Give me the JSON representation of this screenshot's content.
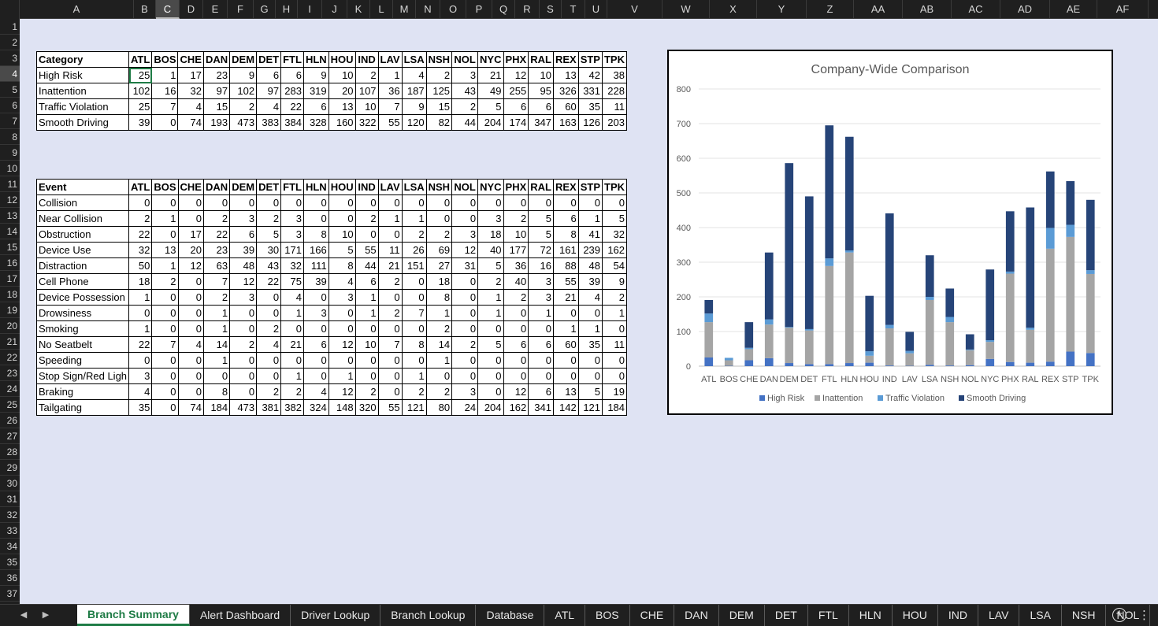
{
  "spreadsheet": {
    "columns": [
      "A",
      "B",
      "C",
      "D",
      "E",
      "F",
      "G",
      "H",
      "I",
      "J",
      "K",
      "L",
      "M",
      "N",
      "O",
      "P",
      "Q",
      "R",
      "S",
      "T",
      "U",
      "V",
      "W",
      "X",
      "Y",
      "Z",
      "AA",
      "AB",
      "AC",
      "AD",
      "AE",
      "AF",
      "AG"
    ],
    "selected_column": "C",
    "rows": [
      "1",
      "2",
      "3",
      "4",
      "5",
      "6",
      "7",
      "8",
      "9",
      "10",
      "11",
      "12",
      "13",
      "14",
      "15",
      "16",
      "17",
      "18",
      "19",
      "20",
      "21",
      "22",
      "23",
      "24",
      "25",
      "26",
      "27",
      "28",
      "29",
      "30",
      "31",
      "32",
      "33",
      "34",
      "35",
      "36",
      "37"
    ],
    "selected_row": "4"
  },
  "category_table": {
    "header": [
      "Category",
      "ATL",
      "BOS",
      "CHE",
      "DAN",
      "DEM",
      "DET",
      "FTL",
      "HLN",
      "HOU",
      "IND",
      "LAV",
      "LSA",
      "NSH",
      "NOL",
      "NYC",
      "PHX",
      "RAL",
      "REX",
      "STP",
      "TPK"
    ],
    "rows": [
      {
        "label": "High Risk",
        "values": [
          25,
          1,
          17,
          23,
          9,
          6,
          6,
          9,
          10,
          2,
          1,
          4,
          2,
          3,
          21,
          12,
          10,
          13,
          42,
          38
        ]
      },
      {
        "label": "Inattention",
        "values": [
          102,
          16,
          32,
          97,
          102,
          97,
          283,
          319,
          20,
          107,
          36,
          187,
          125,
          43,
          49,
          255,
          95,
          326,
          331,
          228
        ]
      },
      {
        "label": "Traffic Violation",
        "values": [
          25,
          7,
          4,
          15,
          2,
          4,
          22,
          6,
          13,
          10,
          7,
          9,
          15,
          2,
          5,
          6,
          6,
          60,
          35,
          11
        ]
      },
      {
        "label": "Smooth Driving",
        "values": [
          39,
          0,
          74,
          193,
          473,
          383,
          384,
          328,
          160,
          322,
          55,
          120,
          82,
          44,
          204,
          174,
          347,
          163,
          126,
          203
        ]
      }
    ]
  },
  "event_table": {
    "header": [
      "Event",
      "ATL",
      "BOS",
      "CHE",
      "DAN",
      "DEM",
      "DET",
      "FTL",
      "HLN",
      "HOU",
      "IND",
      "LAV",
      "LSA",
      "NSH",
      "NOL",
      "NYC",
      "PHX",
      "RAL",
      "REX",
      "STP",
      "TPK"
    ],
    "rows": [
      {
        "label": "Collision",
        "values": [
          0,
          0,
          0,
          0,
          0,
          0,
          0,
          0,
          0,
          0,
          0,
          0,
          0,
          0,
          0,
          0,
          0,
          0,
          0,
          0
        ]
      },
      {
        "label": "Near Collision",
        "values": [
          2,
          1,
          0,
          2,
          3,
          2,
          3,
          0,
          0,
          2,
          1,
          1,
          0,
          0,
          3,
          2,
          5,
          6,
          1,
          5
        ]
      },
      {
        "label": "Obstruction",
        "values": [
          22,
          0,
          17,
          22,
          6,
          5,
          3,
          8,
          10,
          0,
          0,
          2,
          2,
          3,
          18,
          10,
          5,
          8,
          41,
          32
        ]
      },
      {
        "label": "Device Use",
        "values": [
          32,
          13,
          20,
          23,
          39,
          30,
          171,
          166,
          5,
          55,
          11,
          26,
          69,
          12,
          40,
          177,
          72,
          161,
          239,
          162
        ]
      },
      {
        "label": "Distraction",
        "values": [
          50,
          1,
          12,
          63,
          48,
          43,
          32,
          111,
          8,
          44,
          21,
          151,
          27,
          31,
          5,
          36,
          16,
          88,
          48,
          54
        ]
      },
      {
        "label": "Cell Phone",
        "values": [
          18,
          2,
          0,
          7,
          12,
          22,
          75,
          39,
          4,
          6,
          2,
          0,
          18,
          0,
          2,
          40,
          3,
          55,
          39,
          9
        ]
      },
      {
        "label": "Device Possession",
        "values": [
          1,
          0,
          0,
          2,
          3,
          0,
          4,
          0,
          3,
          1,
          0,
          0,
          8,
          0,
          1,
          2,
          3,
          21,
          4,
          2
        ]
      },
      {
        "label": "Drowsiness",
        "values": [
          0,
          0,
          0,
          1,
          0,
          0,
          1,
          3,
          0,
          1,
          2,
          7,
          1,
          0,
          1,
          0,
          1,
          0,
          0,
          1
        ]
      },
      {
        "label": "Smoking",
        "values": [
          1,
          0,
          0,
          1,
          0,
          2,
          0,
          0,
          0,
          0,
          0,
          0,
          2,
          0,
          0,
          0,
          0,
          1,
          1,
          0
        ]
      },
      {
        "label": "No Seatbelt",
        "values": [
          22,
          7,
          4,
          14,
          2,
          4,
          21,
          6,
          12,
          10,
          7,
          8,
          14,
          2,
          5,
          6,
          6,
          60,
          35,
          11
        ]
      },
      {
        "label": "Speeding",
        "values": [
          0,
          0,
          0,
          1,
          0,
          0,
          0,
          0,
          0,
          0,
          0,
          0,
          1,
          0,
          0,
          0,
          0,
          0,
          0,
          0
        ]
      },
      {
        "label": "Stop Sign/Red Ligh",
        "values": [
          3,
          0,
          0,
          0,
          0,
          0,
          1,
          0,
          1,
          0,
          0,
          1,
          0,
          0,
          0,
          0,
          0,
          0,
          0,
          0
        ]
      },
      {
        "label": "Braking",
        "values": [
          4,
          0,
          0,
          8,
          0,
          2,
          2,
          4,
          12,
          2,
          0,
          2,
          2,
          3,
          0,
          12,
          6,
          13,
          5,
          19
        ]
      },
      {
        "label": "Tailgating",
        "values": [
          35,
          0,
          74,
          184,
          473,
          381,
          382,
          324,
          148,
          320,
          55,
          121,
          80,
          24,
          204,
          162,
          341,
          142,
          121,
          184
        ]
      }
    ]
  },
  "chart_data": {
    "type": "bar",
    "stacked": true,
    "title": "Company-Wide Comparison",
    "categories": [
      "ATL",
      "BOS",
      "CHE",
      "DAN",
      "DEM",
      "DET",
      "FTL",
      "HLN",
      "HOU",
      "IND",
      "LAV",
      "LSA",
      "NSH",
      "NOL",
      "NYC",
      "PHX",
      "RAL",
      "REX",
      "STP",
      "TPK"
    ],
    "series": [
      {
        "name": "High Risk",
        "color": "#4472c4",
        "values": [
          25,
          1,
          17,
          23,
          9,
          6,
          6,
          9,
          10,
          2,
          1,
          4,
          2,
          3,
          21,
          12,
          10,
          13,
          42,
          38
        ]
      },
      {
        "name": "Inattention",
        "color": "#a5a5a5",
        "values": [
          102,
          16,
          32,
          97,
          102,
          97,
          283,
          319,
          20,
          107,
          36,
          187,
          125,
          43,
          49,
          255,
          95,
          326,
          331,
          228
        ]
      },
      {
        "name": "Traffic Violation",
        "color": "#5b9bd5",
        "values": [
          25,
          7,
          4,
          15,
          2,
          4,
          22,
          6,
          13,
          10,
          7,
          9,
          15,
          2,
          5,
          6,
          6,
          60,
          35,
          11
        ]
      },
      {
        "name": "Smooth Driving",
        "color": "#264478",
        "values": [
          39,
          0,
          74,
          193,
          473,
          383,
          384,
          328,
          160,
          322,
          55,
          120,
          82,
          44,
          204,
          174,
          347,
          163,
          126,
          203
        ]
      }
    ],
    "ylim": [
      0,
      800
    ],
    "yticks": [
      0,
      100,
      200,
      300,
      400,
      500,
      600,
      700,
      800
    ],
    "grid": true,
    "legend_position": "bottom"
  },
  "sheet_tabs": {
    "tabs": [
      "Branch Summary",
      "Alert Dashboard",
      "Driver Lookup",
      "Branch Lookup",
      "Database",
      "ATL",
      "BOS",
      "CHE",
      "DAN",
      "DEM",
      "DET",
      "FTL",
      "HLN",
      "HOU",
      "IND",
      "LAV",
      "LSA",
      "NSH",
      "NOL",
      "N ..."
    ],
    "active": "Branch Summary",
    "add_icon": "plus-circle-icon",
    "more_icon": "vertical-ellipsis-icon"
  }
}
